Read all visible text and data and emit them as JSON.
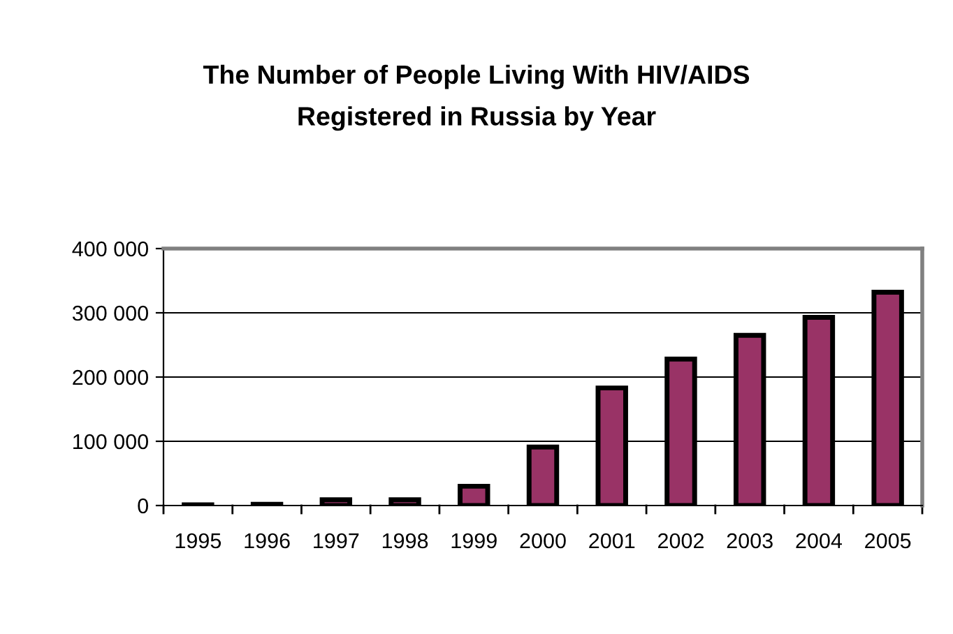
{
  "chart_data": {
    "type": "bar",
    "title": "The Number of People Living With HIV/AIDS\nRegistered in Russia by Year",
    "categories": [
      "1995",
      "1996",
      "1997",
      "1998",
      "1999",
      "2000",
      "2001",
      "2002",
      "2003",
      "2004",
      "2005"
    ],
    "values": [
      1000,
      2000,
      9000,
      9000,
      30000,
      91000,
      183000,
      228000,
      265000,
      293000,
      332000
    ],
    "color": "#993366",
    "ylim": [
      0,
      400000
    ],
    "yticks": [
      {
        "value": 0,
        "label": "0"
      },
      {
        "value": 100000,
        "label": "100 000"
      },
      {
        "value": 200000,
        "label": "200 000"
      },
      {
        "value": 300000,
        "label": "300 000"
      },
      {
        "value": 400000,
        "label": "400 000"
      }
    ],
    "grid": "y",
    "legend": false
  }
}
